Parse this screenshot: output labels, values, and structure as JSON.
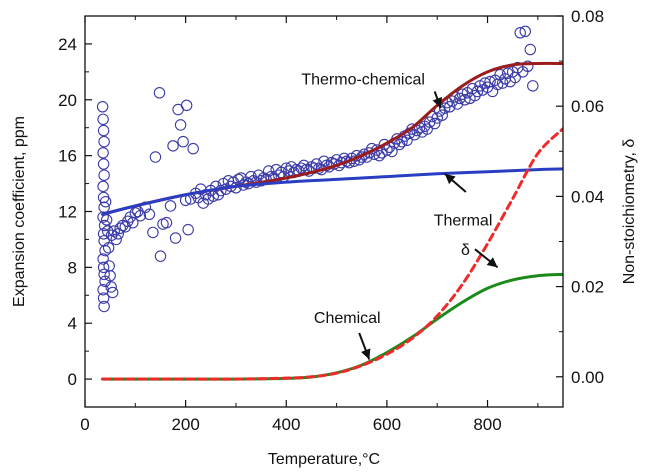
{
  "chart_data": {
    "type": "scatter",
    "xlabel": "Temperature,°C",
    "ylabel": "Expansion coefficient, ppm",
    "y2label": "Non-stoichiometry, δ",
    "xlim": [
      0,
      950
    ],
    "ylim": [
      -2,
      26
    ],
    "y2lim": [
      -0.0067,
      0.08
    ],
    "xticks": [
      0,
      200,
      400,
      600,
      800
    ],
    "yticks": [
      0,
      4,
      8,
      12,
      16,
      20,
      24
    ],
    "y2ticks": [
      0.0,
      0.02,
      0.04,
      0.06,
      0.08
    ],
    "y2ticklabels": [
      "0.00",
      "0.02",
      "0.04",
      "0.06",
      "0.08"
    ],
    "grid": false,
    "series": [
      {
        "kind": "scatter",
        "axis": "left",
        "color": "#3a3aa8",
        "marker": "open-circle",
        "points": [
          [
            35,
            19.5
          ],
          [
            36,
            18.6
          ],
          [
            37,
            17.8
          ],
          [
            38,
            17.0
          ],
          [
            36,
            16.2
          ],
          [
            37,
            15.4
          ],
          [
            38,
            14.6
          ],
          [
            36,
            13.8
          ],
          [
            37,
            13.0
          ],
          [
            38,
            12.3
          ],
          [
            36,
            11.6
          ],
          [
            39,
            11.0
          ],
          [
            37,
            10.4
          ],
          [
            38,
            9.9
          ],
          [
            40,
            9.2
          ],
          [
            36,
            8.6
          ],
          [
            37,
            8.0
          ],
          [
            38,
            7.5
          ],
          [
            40,
            7.0
          ],
          [
            36,
            6.4
          ],
          [
            37,
            5.8
          ],
          [
            38,
            5.2
          ],
          [
            41,
            12.7
          ],
          [
            43,
            11.4
          ],
          [
            45,
            10.6
          ],
          [
            48,
            8.1
          ],
          [
            50,
            7.4
          ],
          [
            52,
            6.6
          ],
          [
            55,
            6.2
          ],
          [
            47,
            9.4
          ],
          [
            53,
            10.3
          ],
          [
            58,
            10.6
          ],
          [
            62,
            10.0
          ],
          [
            66,
            10.4
          ],
          [
            70,
            10.8
          ],
          [
            75,
            11.0
          ],
          [
            80,
            10.9
          ],
          [
            85,
            11.3
          ],
          [
            90,
            11.6
          ],
          [
            95,
            11.2
          ],
          [
            100,
            11.9
          ],
          [
            105,
            12.0
          ],
          [
            110,
            11.7
          ],
          [
            120,
            12.3
          ],
          [
            128,
            11.8
          ],
          [
            135,
            10.5
          ],
          [
            140,
            15.9
          ],
          [
            148,
            20.5
          ],
          [
            150,
            8.8
          ],
          [
            155,
            11.1
          ],
          [
            162,
            11.2
          ],
          [
            170,
            12.4
          ],
          [
            175,
            16.7
          ],
          [
            180,
            10.1
          ],
          [
            185,
            19.3
          ],
          [
            190,
            18.2
          ],
          [
            195,
            17.0
          ],
          [
            200,
            12.8
          ],
          [
            202,
            19.6
          ],
          [
            205,
            10.7
          ],
          [
            210,
            12.9
          ],
          [
            215,
            16.5
          ],
          [
            220,
            13.3
          ],
          [
            225,
            13.0
          ],
          [
            230,
            13.6
          ],
          [
            235,
            12.6
          ],
          [
            240,
            13.2
          ],
          [
            245,
            12.9
          ],
          [
            250,
            13.5
          ],
          [
            255,
            13.1
          ],
          [
            260,
            13.8
          ],
          [
            265,
            13.2
          ],
          [
            270,
            13.5
          ],
          [
            275,
            14.0
          ],
          [
            280,
            13.6
          ],
          [
            285,
            14.2
          ],
          [
            290,
            13.8
          ],
          [
            295,
            14.1
          ],
          [
            300,
            13.7
          ],
          [
            305,
            14.3
          ],
          [
            310,
            14.4
          ],
          [
            315,
            13.9
          ],
          [
            320,
            14.1
          ],
          [
            325,
            14.0
          ],
          [
            330,
            14.5
          ],
          [
            335,
            14.2
          ],
          [
            340,
            14.1
          ],
          [
            345,
            14.6
          ],
          [
            350,
            14.2
          ],
          [
            355,
            14.4
          ],
          [
            360,
            14.3
          ],
          [
            365,
            14.9
          ],
          [
            370,
            14.5
          ],
          [
            375,
            14.4
          ],
          [
            380,
            15.0
          ],
          [
            385,
            14.6
          ],
          [
            390,
            14.8
          ],
          [
            395,
            14.5
          ],
          [
            400,
            15.1
          ],
          [
            405,
            14.9
          ],
          [
            410,
            15.2
          ],
          [
            415,
            14.8
          ],
          [
            420,
            15.0
          ],
          [
            425,
            14.9
          ],
          [
            430,
            15.1
          ],
          [
            435,
            15.3
          ],
          [
            440,
            15.0
          ],
          [
            445,
            14.9
          ],
          [
            450,
            15.2
          ],
          [
            455,
            15.1
          ],
          [
            460,
            15.4
          ],
          [
            465,
            15.1
          ],
          [
            470,
            15.0
          ],
          [
            475,
            15.6
          ],
          [
            480,
            15.3
          ],
          [
            485,
            15.2
          ],
          [
            490,
            15.5
          ],
          [
            495,
            15.4
          ],
          [
            500,
            15.7
          ],
          [
            505,
            15.3
          ],
          [
            510,
            15.5
          ],
          [
            515,
            15.8
          ],
          [
            520,
            15.6
          ],
          [
            525,
            15.5
          ],
          [
            530,
            15.8
          ],
          [
            535,
            15.6
          ],
          [
            540,
            16.0
          ],
          [
            545,
            15.7
          ],
          [
            550,
            15.9
          ],
          [
            555,
            16.1
          ],
          [
            560,
            15.9
          ],
          [
            565,
            16.2
          ],
          [
            570,
            16.5
          ],
          [
            575,
            16.1
          ],
          [
            580,
            16.4
          ],
          [
            585,
            16.0
          ],
          [
            590,
            16.2
          ],
          [
            595,
            16.8
          ],
          [
            600,
            16.4
          ],
          [
            605,
            16.6
          ],
          [
            610,
            16.3
          ],
          [
            615,
            16.9
          ],
          [
            620,
            17.2
          ],
          [
            625,
            16.8
          ],
          [
            630,
            17.0
          ],
          [
            635,
            17.4
          ],
          [
            640,
            17.1
          ],
          [
            645,
            17.6
          ],
          [
            650,
            17.9
          ],
          [
            655,
            17.5
          ],
          [
            660,
            17.8
          ],
          [
            665,
            18.0
          ],
          [
            670,
            17.7
          ],
          [
            675,
            18.1
          ],
          [
            680,
            17.9
          ],
          [
            685,
            18.4
          ],
          [
            690,
            18.8
          ],
          [
            695,
            18.3
          ],
          [
            700,
            18.7
          ],
          [
            705,
            19.2
          ],
          [
            710,
            18.9
          ],
          [
            715,
            19.4
          ],
          [
            720,
            19.8
          ],
          [
            725,
            19.5
          ],
          [
            730,
            19.9
          ],
          [
            735,
            20.2
          ],
          [
            740,
            19.7
          ],
          [
            745,
            20.1
          ],
          [
            750,
            20.4
          ],
          [
            755,
            20.0
          ],
          [
            760,
            20.5
          ],
          [
            765,
            20.1
          ],
          [
            770,
            20.8
          ],
          [
            775,
            20.3
          ],
          [
            780,
            20.6
          ],
          [
            785,
            21.0
          ],
          [
            790,
            20.7
          ],
          [
            795,
            21.2
          ],
          [
            800,
            20.9
          ],
          [
            805,
            21.3
          ],
          [
            810,
            20.6
          ],
          [
            815,
            21.4
          ],
          [
            820,
            21.1
          ],
          [
            825,
            21.8
          ],
          [
            830,
            21.2
          ],
          [
            835,
            21.5
          ],
          [
            840,
            21.9
          ],
          [
            845,
            21.3
          ],
          [
            850,
            22.0
          ],
          [
            855,
            21.6
          ],
          [
            860,
            22.3
          ],
          [
            865,
            24.8
          ],
          [
            870,
            22.0
          ],
          [
            875,
            24.9
          ],
          [
            880,
            22.4
          ],
          [
            885,
            23.6
          ],
          [
            890,
            21.0
          ]
        ]
      },
      {
        "kind": "line",
        "axis": "left",
        "color": "#9b1c1c",
        "dash": "solid",
        "label": "Thermo-chemical",
        "x": [
          35,
          100,
          200,
          300,
          400,
          450,
          500,
          550,
          600,
          650,
          700,
          750,
          800,
          850,
          900,
          950
        ],
        "y": [
          11.8,
          12.4,
          13.2,
          13.8,
          14.4,
          14.8,
          15.3,
          16.0,
          16.9,
          18.0,
          19.6,
          21.0,
          22.0,
          22.5,
          22.6,
          22.6
        ]
      },
      {
        "kind": "line",
        "axis": "left",
        "color": "#2a3ec4",
        "dash": "solid",
        "label": "Thermal",
        "x": [
          35,
          100,
          200,
          300,
          400,
          500,
          600,
          700,
          800,
          900,
          950
        ],
        "y": [
          11.8,
          12.4,
          13.2,
          13.8,
          14.1,
          14.3,
          14.5,
          14.7,
          14.85,
          15.0,
          15.05
        ]
      },
      {
        "kind": "line",
        "axis": "left",
        "color": "#1a8a1a",
        "dash": "solid",
        "label": "Chemical",
        "x": [
          35,
          100,
          200,
          300,
          400,
          450,
          500,
          550,
          600,
          650,
          700,
          750,
          800,
          850,
          900,
          950
        ],
        "y": [
          0,
          0,
          0,
          0,
          0.05,
          0.15,
          0.45,
          1.0,
          1.9,
          3.0,
          4.3,
          5.5,
          6.5,
          7.1,
          7.4,
          7.5
        ]
      },
      {
        "kind": "line",
        "axis": "right",
        "color": "#f02a2a",
        "dash": "dashed",
        "label": "δ",
        "x": [
          35,
          100,
          200,
          300,
          400,
          450,
          500,
          550,
          600,
          650,
          700,
          750,
          800,
          850,
          900,
          950
        ],
        "y": [
          -0.0005,
          -0.0005,
          -0.0005,
          -0.0005,
          -0.0003,
          0.0,
          0.0008,
          0.0025,
          0.005,
          0.0085,
          0.0135,
          0.0205,
          0.0295,
          0.0395,
          0.0495,
          0.055
        ]
      }
    ],
    "annotations": [
      {
        "text": "Thermo-chemical",
        "x": 430,
        "y": 21.1,
        "arrow_to": [
          707,
          19.4
        ]
      },
      {
        "text": "Thermal",
        "x": 693,
        "y": 11.0,
        "arrow_to": [
          715,
          14.7
        ]
      },
      {
        "text": "δ",
        "x": 765,
        "y": 8.9,
        "arrow_to": [
          820,
          8.0
        ]
      },
      {
        "text": "Chemical",
        "x": 455,
        "y": 4.0,
        "arrow_to": [
          565,
          1.4
        ]
      }
    ]
  }
}
